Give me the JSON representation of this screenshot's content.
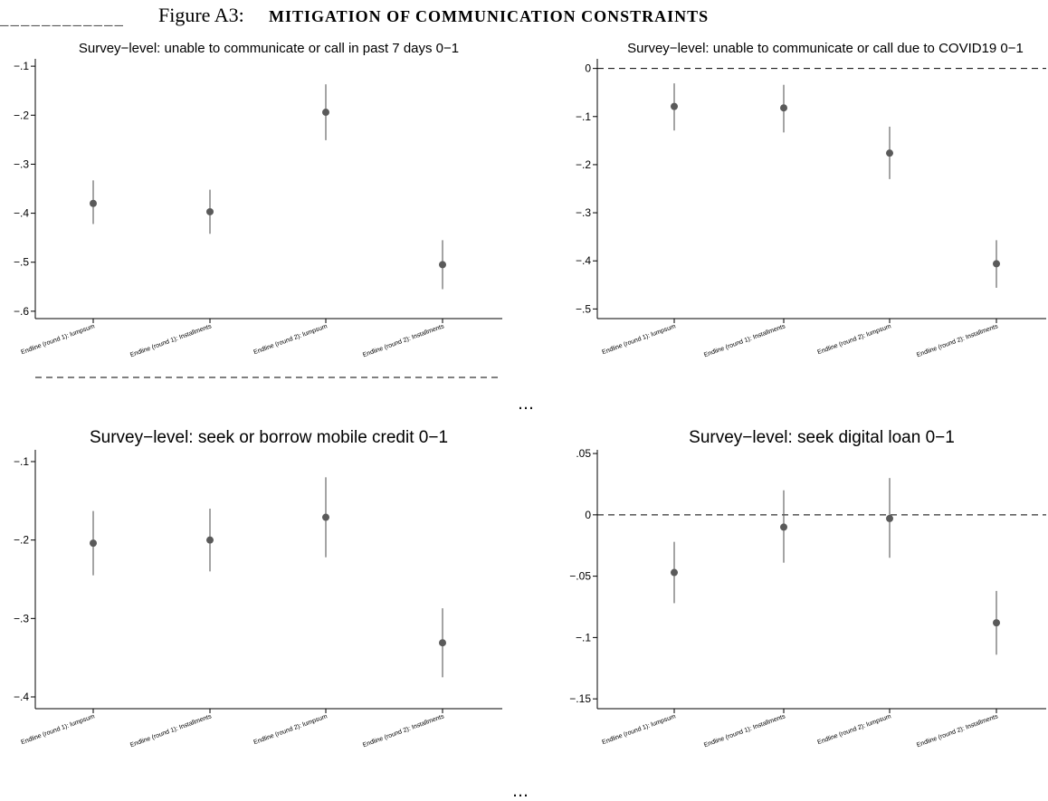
{
  "figure": {
    "title_prefix": "Figure A3:",
    "title_main": "MITIGATION OF COMMUNICATION CONSTRAINTS",
    "continuation_mark": "…"
  },
  "colors": {
    "marker": "#5a5a5a",
    "ci": "#5a5a5a",
    "axis": "#000000",
    "refline": "#000000"
  },
  "chart_data": [
    {
      "type": "scatter",
      "subtype": "coefficient plot with 95% confidence intervals",
      "title": "Survey−level: unable to communicate or call in past 7 days 0−1",
      "categories": [
        "Endline (round 1): lumpsum",
        "Endline (round 1): Installments",
        "Endline (round 2): lumpsum",
        "Endline (round 2): Installments"
      ],
      "values": [
        -0.38,
        -0.397,
        -0.194,
        -0.505
      ],
      "ci_low": [
        -0.422,
        -0.442,
        -0.251,
        -0.555
      ],
      "ci_high": [
        -0.333,
        -0.352,
        -0.137,
        -0.455
      ],
      "yticks": [
        -0.1,
        -0.2,
        -0.3,
        -0.4,
        -0.5,
        -0.6
      ],
      "ytick_labels": [
        "−.1",
        "−.2",
        "−.3",
        "−.4",
        "−.5",
        "−.6"
      ],
      "ylim": [
        -0.615,
        -0.085
      ],
      "reference_line": 0,
      "grid": false,
      "xlabel": "",
      "ylabel": ""
    },
    {
      "type": "scatter",
      "subtype": "coefficient plot with 95% confidence intervals",
      "title": "Survey−level: unable to communicate or call due to COVID19 0−1",
      "categories": [
        "Endline (round 1): lumpsum",
        "Endline (round 1): Installments",
        "Endline (round 2): lumpsum",
        "Endline (round 2): Installments"
      ],
      "values": [
        -0.079,
        -0.082,
        -0.176,
        -0.406
      ],
      "ci_low": [
        -0.129,
        -0.133,
        -0.23,
        -0.456
      ],
      "ci_high": [
        -0.031,
        -0.034,
        -0.121,
        -0.357
      ],
      "yticks": [
        0,
        -0.1,
        -0.2,
        -0.3,
        -0.4,
        -0.5
      ],
      "ytick_labels": [
        "0",
        "−.1",
        "−.2",
        "−.3",
        "−.4",
        "−.5"
      ],
      "ylim": [
        -0.52,
        0.02
      ],
      "reference_line": 0,
      "grid": false,
      "xlabel": "",
      "ylabel": ""
    },
    {
      "type": "scatter",
      "subtype": "coefficient plot with 95% confidence intervals",
      "title": "Survey−level: seek or borrow mobile credit 0−1",
      "categories": [
        "Endline (round 1): lumpsum",
        "Endline (round 1): Installments",
        "Endline (round 2): lumpsum",
        "Endline (round 2): Installments"
      ],
      "values": [
        -0.204,
        -0.2,
        -0.171,
        -0.331
      ],
      "ci_low": [
        -0.245,
        -0.24,
        -0.222,
        -0.375
      ],
      "ci_high": [
        -0.163,
        -0.16,
        -0.12,
        -0.287
      ],
      "yticks": [
        -0.1,
        -0.2,
        -0.3,
        -0.4
      ],
      "ytick_labels": [
        "−.1",
        "−.2",
        "−.3",
        "−.4"
      ],
      "ylim": [
        -0.415,
        -0.085
      ],
      "reference_line": 0,
      "grid": false,
      "xlabel": "",
      "ylabel": ""
    },
    {
      "type": "scatter",
      "subtype": "coefficient plot with 95% confidence intervals",
      "title": "Survey−level: seek digital loan 0−1",
      "categories": [
        "Endline (round 1): lumpsum",
        "Endline (round 1): Installments",
        "Endline (round 2): lumpsum",
        "Endline (round 2): Installments"
      ],
      "values": [
        -0.047,
        -0.01,
        -0.003,
        -0.088
      ],
      "ci_low": [
        -0.072,
        -0.039,
        -0.035,
        -0.114
      ],
      "ci_high": [
        -0.022,
        0.02,
        0.03,
        -0.062
      ],
      "yticks": [
        0.05,
        0,
        -0.05,
        -0.1,
        -0.15
      ],
      "ytick_labels": [
        ".05",
        "0",
        "−.05",
        "−.1",
        "−.15"
      ],
      "ylim": [
        -0.158,
        0.053
      ],
      "reference_line": 0,
      "grid": false,
      "xlabel": "",
      "ylabel": ""
    }
  ]
}
